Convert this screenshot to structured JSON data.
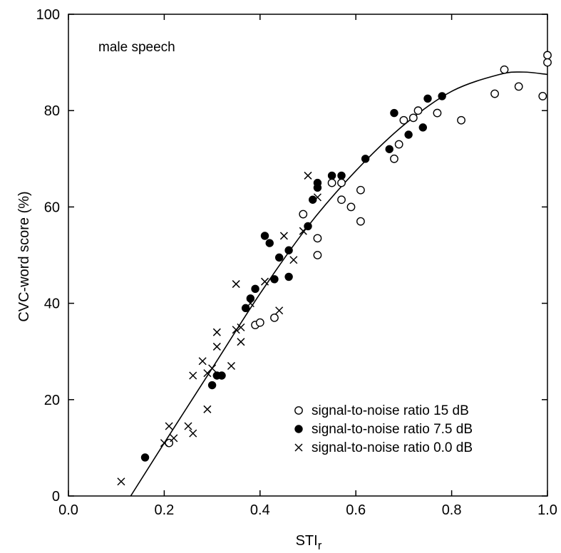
{
  "chart_data": {
    "type": "scatter",
    "title": "",
    "annotation": "male speech",
    "xlabel": "STI",
    "xlabel_subscript": "r",
    "ylabel": "CVC-word score (%)",
    "xlim": [
      0.0,
      1.0
    ],
    "ylim": [
      0,
      100
    ],
    "xticks": [
      0.0,
      0.2,
      0.4,
      0.6,
      0.8,
      1.0
    ],
    "xtick_labels": [
      "0.0",
      "0.2",
      "0.4",
      "0.6",
      "0.8",
      "1.0"
    ],
    "yticks": [
      0,
      20,
      40,
      60,
      80,
      100
    ],
    "ytick_labels": [
      "0",
      "20",
      "40",
      "60",
      "80",
      "100"
    ],
    "grid": false,
    "legend_position": "bottom-right",
    "series": [
      {
        "name": "signal-to-noise ratio 15 dB",
        "marker": "open-circle",
        "points": [
          [
            0.21,
            11
          ],
          [
            0.39,
            35.5
          ],
          [
            0.4,
            36
          ],
          [
            0.43,
            37
          ],
          [
            0.49,
            58.5
          ],
          [
            0.52,
            53.5
          ],
          [
            0.52,
            50
          ],
          [
            0.55,
            65
          ],
          [
            0.57,
            61.5
          ],
          [
            0.57,
            65
          ],
          [
            0.59,
            60
          ],
          [
            0.61,
            63.5
          ],
          [
            0.61,
            57
          ],
          [
            0.68,
            70
          ],
          [
            0.69,
            73
          ],
          [
            0.7,
            78
          ],
          [
            0.72,
            78.5
          ],
          [
            0.73,
            80
          ],
          [
            0.77,
            79.5
          ],
          [
            0.82,
            78
          ],
          [
            0.89,
            83.5
          ],
          [
            0.91,
            88.5
          ],
          [
            0.94,
            85
          ],
          [
            0.99,
            83
          ],
          [
            1.0,
            91.5
          ],
          [
            1.0,
            90
          ]
        ]
      },
      {
        "name": "signal-to-noise ratio 7.5 dB",
        "marker": "filled-circle",
        "points": [
          [
            0.16,
            8
          ],
          [
            0.3,
            23
          ],
          [
            0.31,
            25
          ],
          [
            0.32,
            25
          ],
          [
            0.37,
            39
          ],
          [
            0.38,
            41
          ],
          [
            0.39,
            43
          ],
          [
            0.41,
            54
          ],
          [
            0.42,
            52.5
          ],
          [
            0.43,
            45
          ],
          [
            0.44,
            49.5
          ],
          [
            0.46,
            51
          ],
          [
            0.46,
            45.5
          ],
          [
            0.5,
            56
          ],
          [
            0.51,
            61.5
          ],
          [
            0.52,
            64
          ],
          [
            0.52,
            65
          ],
          [
            0.55,
            66.5
          ],
          [
            0.57,
            66.5
          ],
          [
            0.62,
            70
          ],
          [
            0.67,
            72
          ],
          [
            0.68,
            79.5
          ],
          [
            0.71,
            75
          ],
          [
            0.74,
            76.5
          ],
          [
            0.75,
            82.5
          ],
          [
            0.78,
            83
          ]
        ]
      },
      {
        "name": "signal-to-noise ratio 0.0 dB",
        "marker": "cross",
        "points": [
          [
            0.11,
            3
          ],
          [
            0.2,
            11
          ],
          [
            0.21,
            14.5
          ],
          [
            0.22,
            12
          ],
          [
            0.25,
            14.5
          ],
          [
            0.26,
            13
          ],
          [
            0.26,
            25
          ],
          [
            0.28,
            28
          ],
          [
            0.29,
            25.5
          ],
          [
            0.29,
            18
          ],
          [
            0.3,
            26.5
          ],
          [
            0.31,
            31
          ],
          [
            0.31,
            34
          ],
          [
            0.34,
            27
          ],
          [
            0.35,
            44
          ],
          [
            0.35,
            34.5
          ],
          [
            0.36,
            32
          ],
          [
            0.36,
            35
          ],
          [
            0.38,
            40
          ],
          [
            0.41,
            44.5
          ],
          [
            0.44,
            38.5
          ],
          [
            0.45,
            54
          ],
          [
            0.47,
            49
          ],
          [
            0.49,
            55
          ],
          [
            0.5,
            66.5
          ],
          [
            0.52,
            62
          ]
        ]
      }
    ],
    "fit_curve": {
      "points": [
        [
          0.13,
          0
        ],
        [
          0.2,
          11
        ],
        [
          0.3,
          26.5
        ],
        [
          0.4,
          42
        ],
        [
          0.5,
          56
        ],
        [
          0.6,
          67.5
        ],
        [
          0.7,
          77
        ],
        [
          0.8,
          84
        ],
        [
          0.9,
          87.5
        ],
        [
          0.95,
          88
        ],
        [
          1.0,
          87.5
        ]
      ]
    }
  }
}
